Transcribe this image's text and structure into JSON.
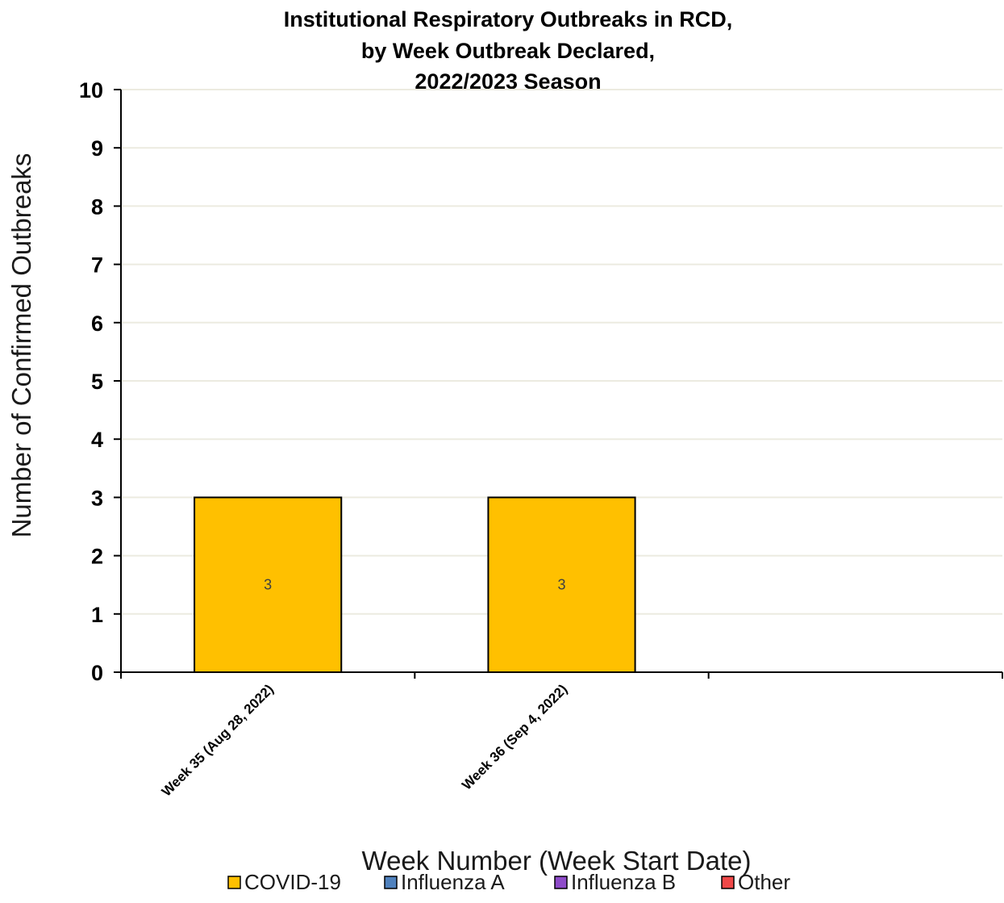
{
  "chart_data": {
    "type": "bar",
    "stacked": true,
    "title": [
      "Institutional Respiratory Outbreaks in RCD,",
      "by Week Outbreak Declared,",
      "2022/2023 Season"
    ],
    "xlabel": "Week Number (Week Start Date)",
    "ylabel": "Number of Confirmed Outbreaks",
    "ylim": [
      0,
      10
    ],
    "yticks": [
      0,
      1,
      2,
      3,
      4,
      5,
      6,
      7,
      8,
      9,
      10
    ],
    "categories": [
      "Week 35 (Aug 28, 2022)",
      "Week 36 (Sep 4, 2022)",
      ""
    ],
    "series": [
      {
        "name": "COVID-19",
        "color": "#FFC000",
        "values": [
          3,
          3,
          null
        ]
      },
      {
        "name": "Influenza A",
        "color": "#4F81BD",
        "values": [
          null,
          null,
          null
        ]
      },
      {
        "name": "Influenza B",
        "color": "#8E4BC9",
        "values": [
          null,
          null,
          null
        ]
      },
      {
        "name": "Other",
        "color": "#F04848",
        "values": [
          null,
          null,
          null
        ]
      }
    ],
    "data_labels": true,
    "grid": true,
    "legend_position": "bottom"
  }
}
